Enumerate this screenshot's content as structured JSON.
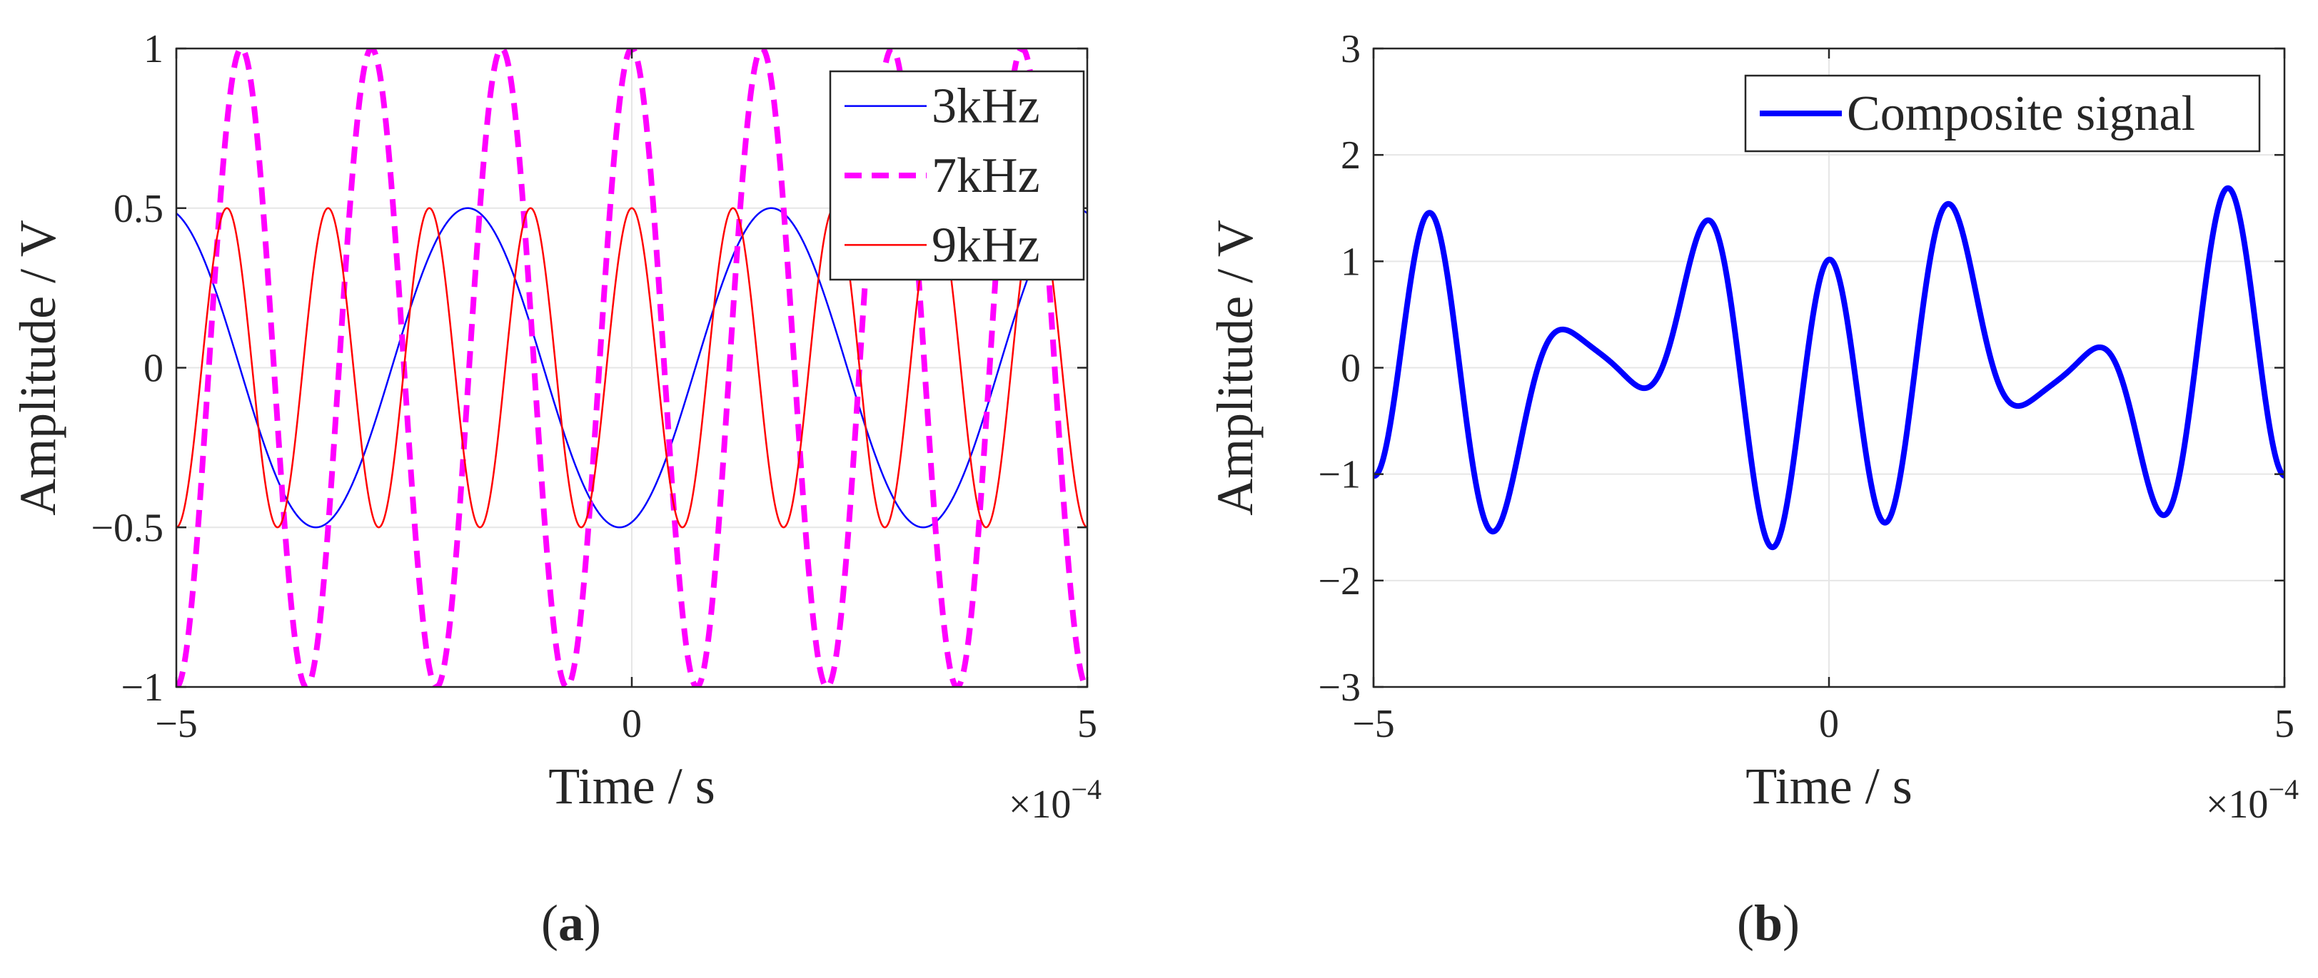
{
  "chart_data": [
    {
      "type": "line",
      "panel_label": "a",
      "title": "",
      "xlabel": "Time / s",
      "ylabel": "Amplitude / V",
      "x_exponent_label": "×10",
      "x_exponent": "−4",
      "xlim": [
        -5,
        5
      ],
      "ylim": [
        -1,
        1
      ],
      "xticks": [
        -5,
        0,
        5
      ],
      "xtick_labels": [
        "−5",
        "0",
        "5"
      ],
      "yticks": [
        -1,
        -0.5,
        0,
        0.5,
        1
      ],
      "ytick_labels": [
        "−1",
        "−0.5",
        "0",
        "0.5",
        "1"
      ],
      "grid": true,
      "legend": "top-right",
      "series": [
        {
          "name": "3kHz",
          "color": "#0000ff",
          "style": "solid",
          "frequency_khz": 3,
          "amplitude": 0.5,
          "phase_rad": -1.316
        },
        {
          "name": "7kHz",
          "color": "#ff00ff",
          "style": "dashed",
          "frequency_khz": 7,
          "amplitude": 1.0,
          "phase_rad": 1.571
        },
        {
          "name": "9kHz",
          "color": "#ff0000",
          "style": "solid",
          "frequency_khz": 9,
          "amplitude": 0.5,
          "phase_rad": 1.571
        }
      ]
    },
    {
      "type": "line",
      "panel_label": "b",
      "title": "",
      "xlabel": "Time / s",
      "ylabel": "Amplitude / V",
      "x_exponent_label": "×10",
      "x_exponent": "−4",
      "xlim": [
        -5,
        5
      ],
      "ylim": [
        -3,
        3
      ],
      "xticks": [
        -5,
        0,
        5
      ],
      "xtick_labels": [
        "−5",
        "0",
        "5"
      ],
      "yticks": [
        -3,
        -2,
        -1,
        0,
        1,
        2,
        3
      ],
      "ytick_labels": [
        "−3",
        "−2",
        "−1",
        "0",
        "1",
        "2",
        "3"
      ],
      "grid": true,
      "legend": "top-right",
      "series": [
        {
          "name": "Composite signal",
          "color": "#0000ff",
          "style": "solid",
          "composition": "sum of 3kHz, 7kHz and 9kHz components"
        }
      ]
    }
  ],
  "captions": {
    "a": "(a)",
    "b": "(b)"
  }
}
